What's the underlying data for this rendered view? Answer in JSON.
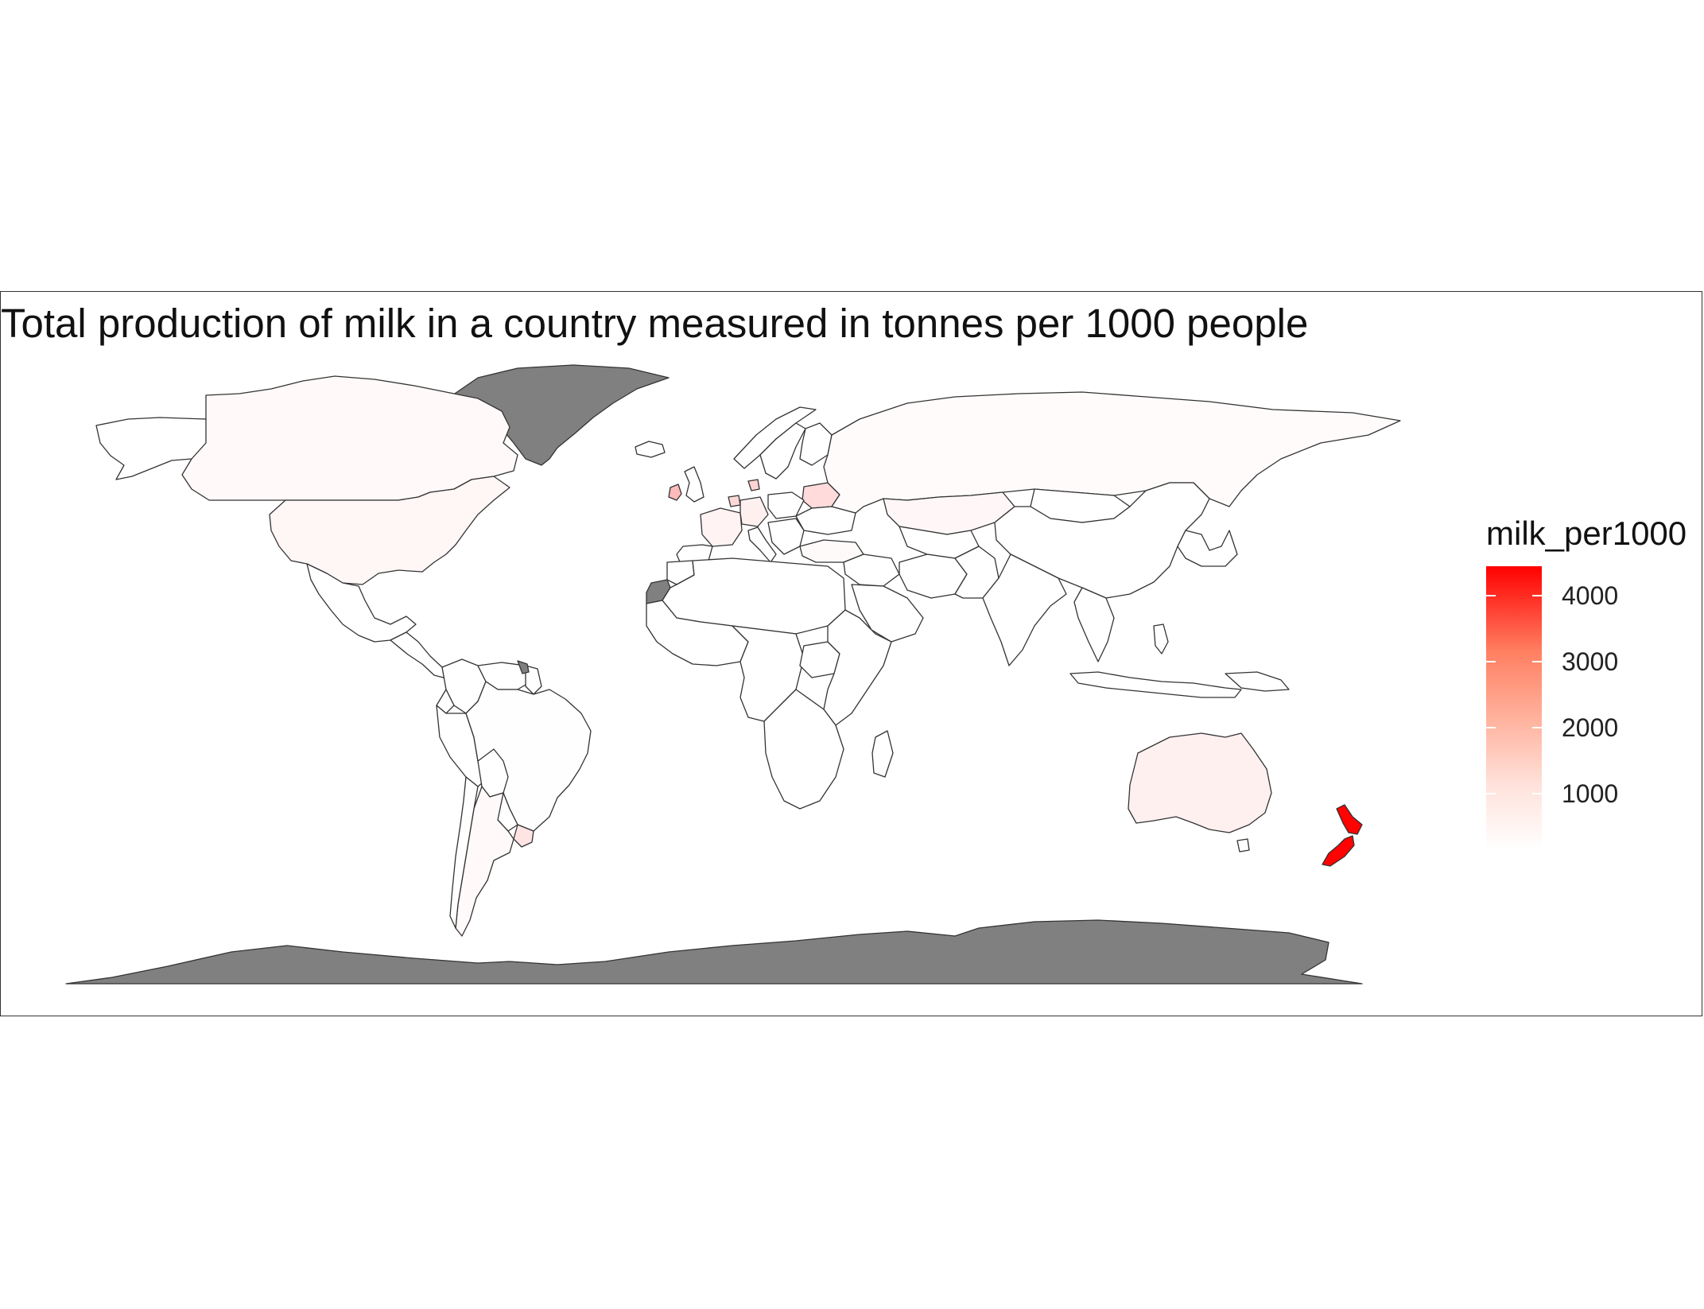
{
  "title": "Total production of milk in a country measured in tonnes per 1000 people",
  "legend": {
    "title": "milk_per1000",
    "ticks": [
      {
        "value": 1000,
        "label": "1000"
      },
      {
        "value": 2000,
        "label": "2000"
      },
      {
        "value": 3000,
        "label": "3000"
      },
      {
        "value": 4000,
        "label": "4000"
      }
    ],
    "range": [
      150,
      4450
    ],
    "low_color": "#ffffff",
    "high_color": "#ff0000"
  },
  "colors": {
    "no_data": "#808080",
    "border": "#333333",
    "ocean": "#ffffff"
  },
  "chart_data": {
    "type": "heatmap",
    "title": "Total production of milk in a country measured in tonnes per 1000 people",
    "legend_title": "milk_per1000",
    "legend_placement": "right",
    "no_data_regions": [
      "Greenland",
      "Antarctica",
      "Western Sahara",
      "French Guiana"
    ],
    "regions": [
      {
        "name": "New Zealand",
        "value": 4400
      },
      {
        "name": "Ireland",
        "value": 1300
      },
      {
        "name": "Belarus",
        "value": 750
      },
      {
        "name": "Denmark",
        "value": 900
      },
      {
        "name": "Netherlands",
        "value": 800
      },
      {
        "name": "Uruguay",
        "value": 600
      },
      {
        "name": "Australia",
        "value": 400
      },
      {
        "name": "United States",
        "value": 300
      },
      {
        "name": "Canada",
        "value": 250
      },
      {
        "name": "France",
        "value": 350
      },
      {
        "name": "Germany",
        "value": 400
      },
      {
        "name": "Russia",
        "value": 220
      },
      {
        "name": "Kazakhstan",
        "value": 280
      },
      {
        "name": "Argentina",
        "value": 250
      },
      {
        "name": "Brazil",
        "value": 170
      },
      {
        "name": "Mongolia",
        "value": 150
      },
      {
        "name": "Iran",
        "value": 100
      },
      {
        "name": "Turkey",
        "value": 230
      },
      {
        "name": "India",
        "value": 120
      },
      {
        "name": "China",
        "value": 30
      },
      {
        "name": "South Sudan",
        "value": 150
      }
    ]
  }
}
